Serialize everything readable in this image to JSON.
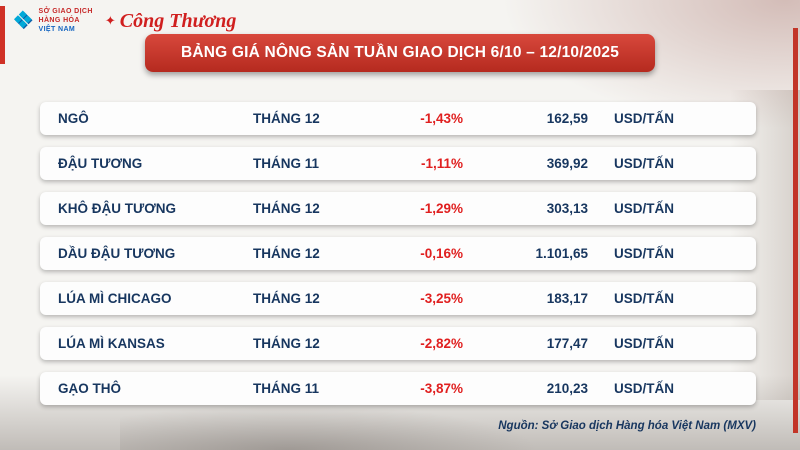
{
  "header": {
    "mxv_logo": {
      "line1": "SỞ GIAO DỊCH",
      "line2": "HÀNG HÓA",
      "line3": "VIỆT NAM"
    },
    "congthuong_logo": "Công Thương",
    "title": "BẢNG GIÁ NÔNG SẢN TUẦN GIAO DỊCH 6/10 – 12/10/2025"
  },
  "chart_data": {
    "type": "table",
    "title": "BẢNG GIÁ NÔNG SẢN TUẦN GIAO DỊCH 6/10 – 12/10/2025",
    "columns": [
      "commodity",
      "contract_month",
      "weekly_change",
      "price",
      "unit"
    ],
    "rows": [
      {
        "name": "NGÔ",
        "month": "THÁNG 12",
        "change": "-1,43%",
        "price": "162,59",
        "unit": "USD/TẤN"
      },
      {
        "name": "ĐẬU TƯƠNG",
        "month": "THÁNG 11",
        "change": "-1,11%",
        "price": "369,92",
        "unit": "USD/TẤN"
      },
      {
        "name": "KHÔ ĐẬU TƯƠNG",
        "month": "THÁNG 12",
        "change": "-1,29%",
        "price": "303,13",
        "unit": "USD/TẤN"
      },
      {
        "name": "DẦU ĐẬU TƯƠNG",
        "month": "THÁNG 12",
        "change": "-0,16%",
        "price": "1.101,65",
        "unit": "USD/TẤN"
      },
      {
        "name": "LÚA MÌ CHICAGO",
        "month": "THÁNG 12",
        "change": "-3,25%",
        "price": "183,17",
        "unit": "USD/TẤN"
      },
      {
        "name": "LÚA MÌ KANSAS",
        "month": "THÁNG 12",
        "change": "-2,82%",
        "price": "177,47",
        "unit": "USD/TẤN"
      },
      {
        "name": "GẠO THÔ",
        "month": "THÁNG 11",
        "change": "-3,87%",
        "price": "210,23",
        "unit": "USD/TẤN"
      }
    ],
    "source": "Nguồn: Sở Giao dịch Hàng hóa Việt Nam (MXV)"
  },
  "colors": {
    "banner_red": "#c03528",
    "change_red": "#e01f1f",
    "text_navy": "#17365f"
  }
}
